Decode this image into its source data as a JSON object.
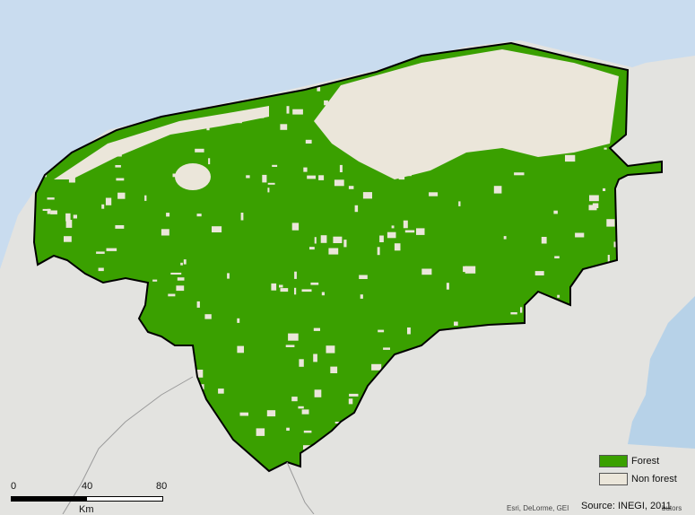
{
  "legend": {
    "items": [
      {
        "label": "Forest",
        "color": "#3aa000"
      },
      {
        "label": "Non forest",
        "color": "#ebe6da"
      }
    ]
  },
  "scalebar": {
    "ticks": [
      "0",
      "40",
      "80"
    ],
    "unit": "Km"
  },
  "credits": {
    "basemap": "Esri, DeLorme, GEI",
    "source": "Source: INEGI, 2011",
    "cut_text": "butors"
  },
  "colors": {
    "forest": "#3aa000",
    "non_forest": "#ebe6da",
    "sea": "#c9dcef",
    "land_outside": "#e3e3e0",
    "boundary": "#000000"
  }
}
